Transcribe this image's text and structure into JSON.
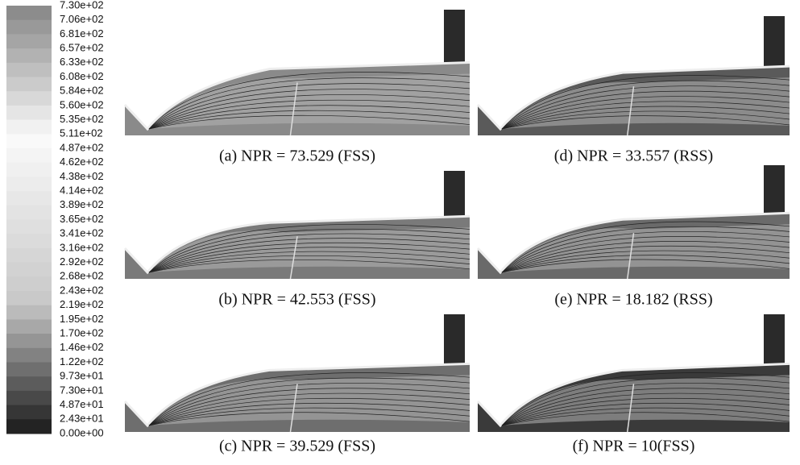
{
  "colorbar": {
    "labels": [
      "7.30e+02",
      "7.06e+02",
      "6.81e+02",
      "6.57e+02",
      "6.33e+02",
      "6.08e+02",
      "5.84e+02",
      "5.60e+02",
      "5.35e+02",
      "5.11e+02",
      "4.87e+02",
      "4.62e+02",
      "4.38e+02",
      "4.14e+02",
      "3.89e+02",
      "3.65e+02",
      "3.41e+02",
      "3.16e+02",
      "2.92e+02",
      "2.68e+02",
      "2.43e+02",
      "2.19e+02",
      "1.95e+02",
      "1.70e+02",
      "1.46e+02",
      "1.22e+02",
      "9.73e+01",
      "7.30e+01",
      "4.87e+01",
      "2.43e+01",
      "0.00e+00"
    ]
  },
  "panels": [
    {
      "caption": "(a) NPR = 73.529 (FSS)"
    },
    {
      "caption": "(b) NPR = 42.553 (FSS)"
    },
    {
      "caption": "(c) NPR = 39.529 (FSS)"
    },
    {
      "caption": "(d) NPR = 33.557 (RSS)"
    },
    {
      "caption": "(e) NPR = 18.182 (RSS)"
    },
    {
      "caption": "(f) NPR = 10(FSS)"
    }
  ]
}
